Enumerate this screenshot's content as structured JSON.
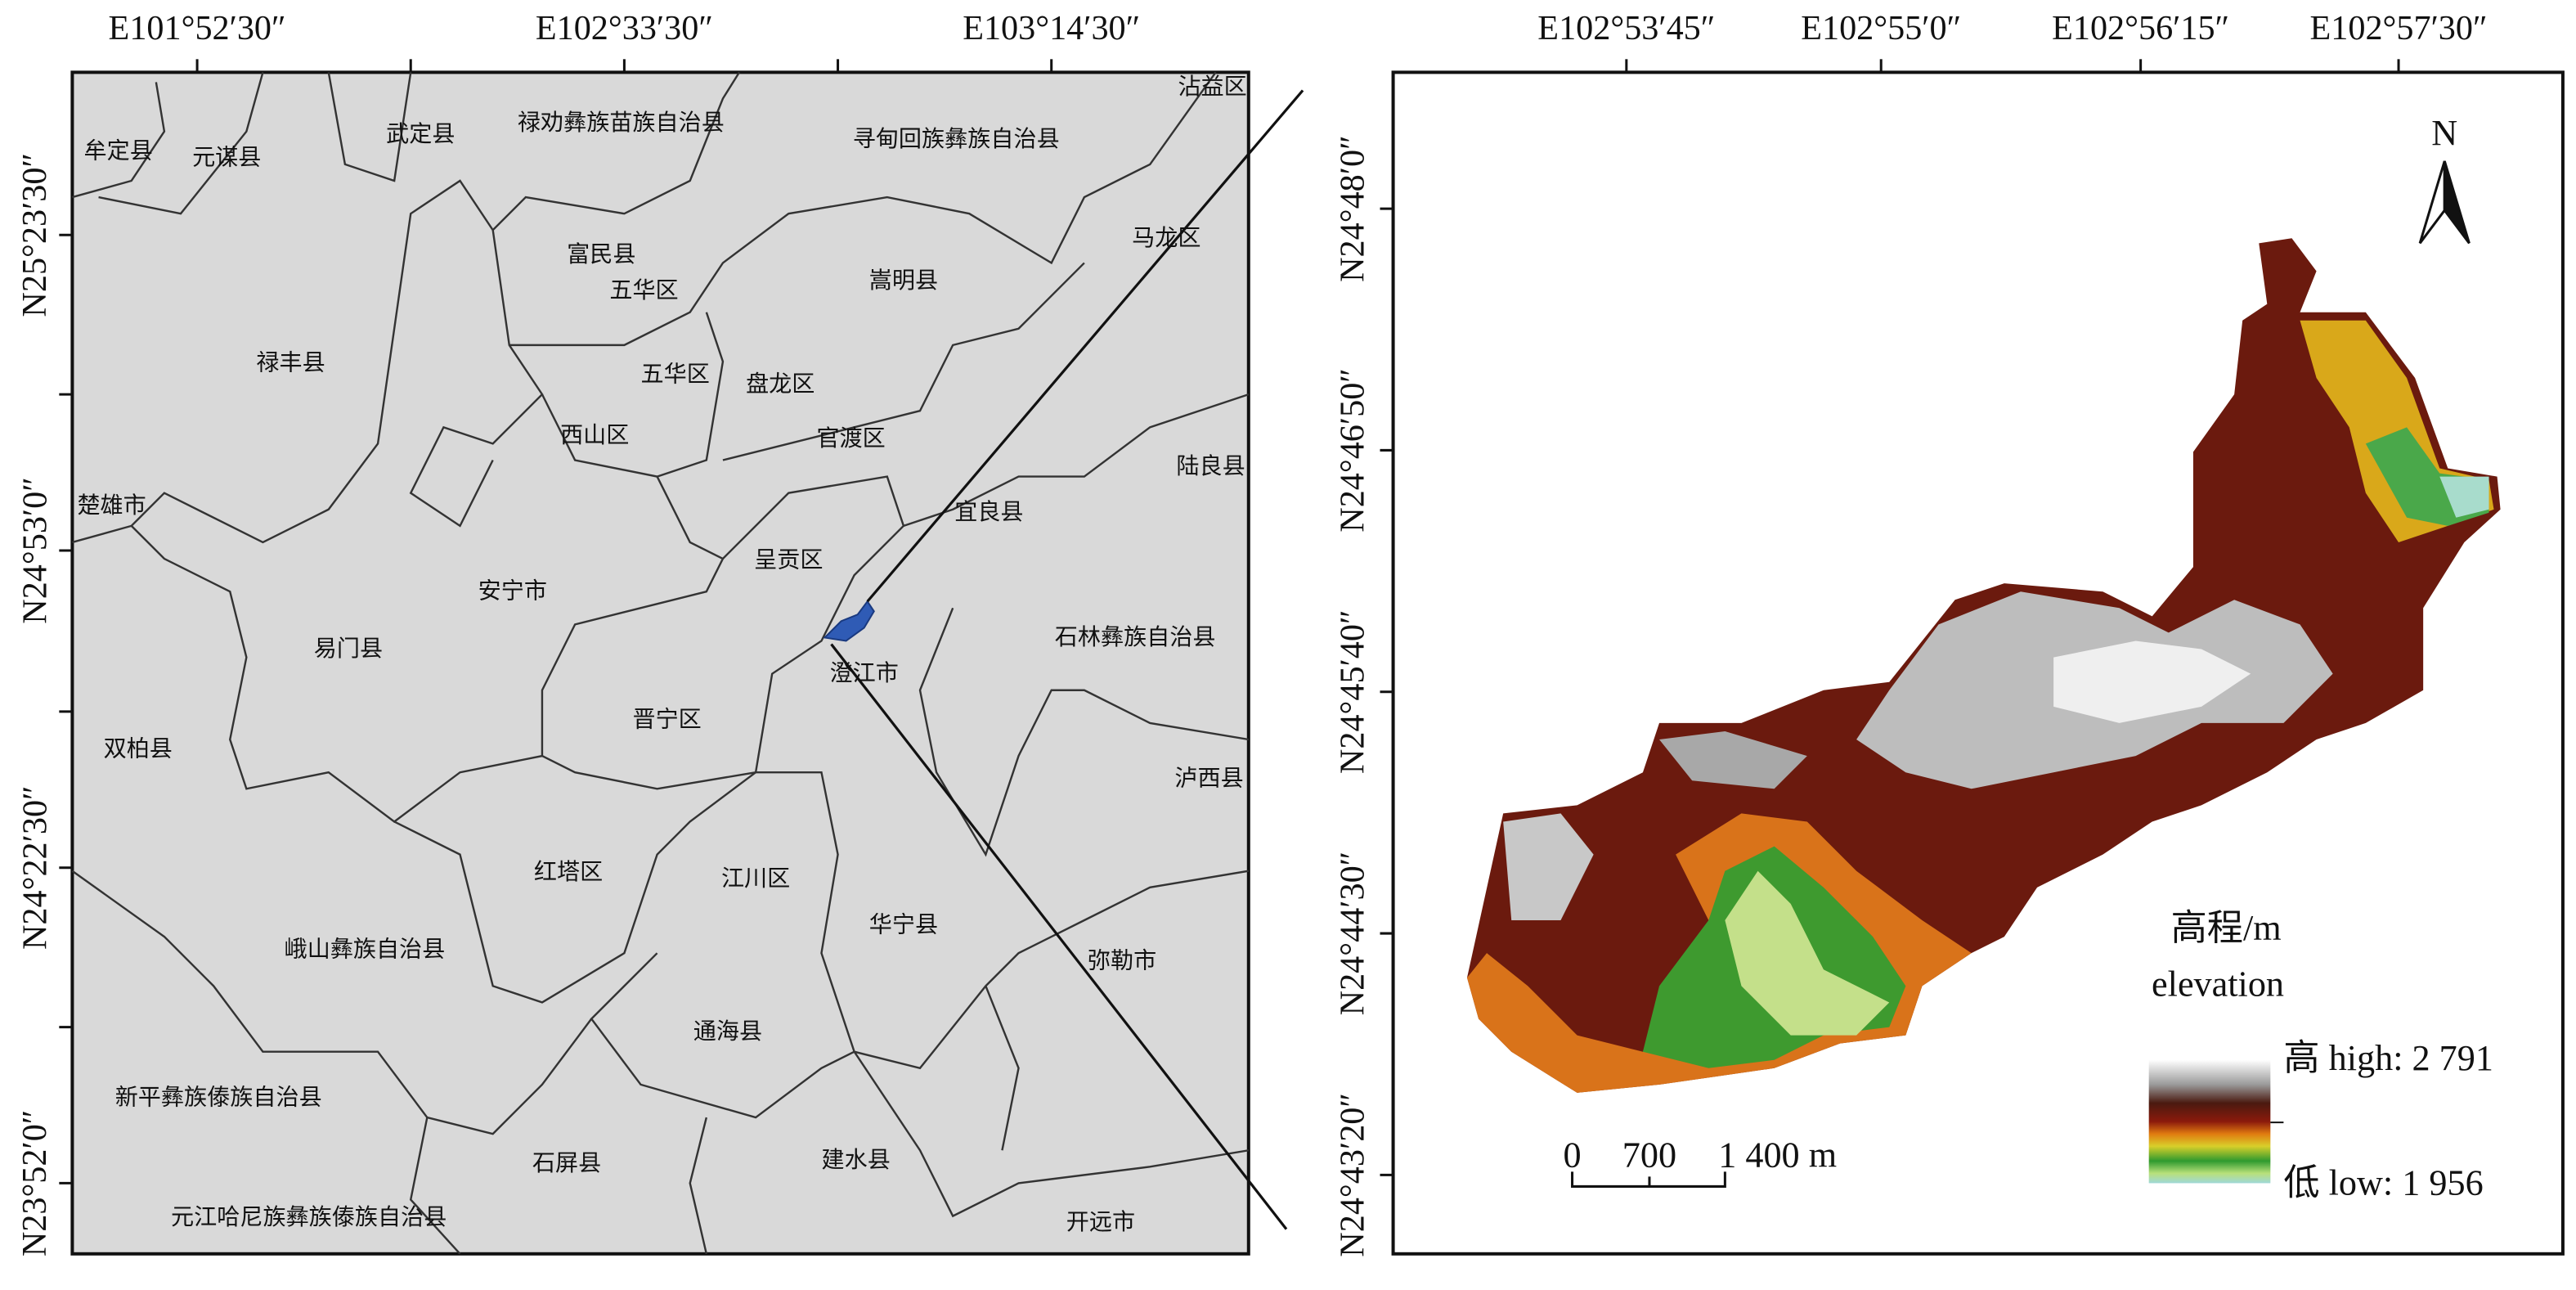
{
  "left_map": {
    "x_ticks": [
      "E101°52′30″",
      "E102°33′30″",
      "E103°14′30″"
    ],
    "y_ticks": [
      "N25°23′30″",
      "N24°53′0″",
      "N24°22′30″",
      "N23°52′0″"
    ],
    "places": [
      "牟定县",
      "元谋县",
      "武定县",
      "禄劝彝族苗族自治县",
      "寻甸回族彝族自治县",
      "沾益区",
      "马龙区",
      "富民县",
      "五华区",
      "嵩明县",
      "禄丰县",
      "五华区",
      "盘龙区",
      "西山区",
      "官渡区",
      "陆良县",
      "楚雄市",
      "宜良县",
      "呈贡区",
      "安宁市",
      "石林彝族自治县",
      "易门县",
      "澄江市",
      "晋宁区",
      "双柏县",
      "泸西县",
      "红塔区",
      "江川区",
      "华宁县",
      "峨山彝族自治县",
      "弥勒市",
      "通海县",
      "新平彝族傣族自治县",
      "石屏县",
      "建水县",
      "元江哈尼族彝族傣族自治县",
      "开远市"
    ]
  },
  "right_map": {
    "x_ticks": [
      "E102°53′45″",
      "E102°55′0″",
      "E102°56′15″",
      "E102°57′30″"
    ],
    "y_ticks": [
      "N24°48′0″",
      "N24°46′50″",
      "N24°45′40″",
      "N24°44′30″",
      "N24°43′20″"
    ],
    "north": "N",
    "legend": {
      "title": "高程/m",
      "subtitle": "elevation",
      "high": "高 high: 2 791",
      "low": "低 low: 1 956"
    },
    "scale_bar": [
      "0",
      "700",
      "1 400 m"
    ]
  }
}
